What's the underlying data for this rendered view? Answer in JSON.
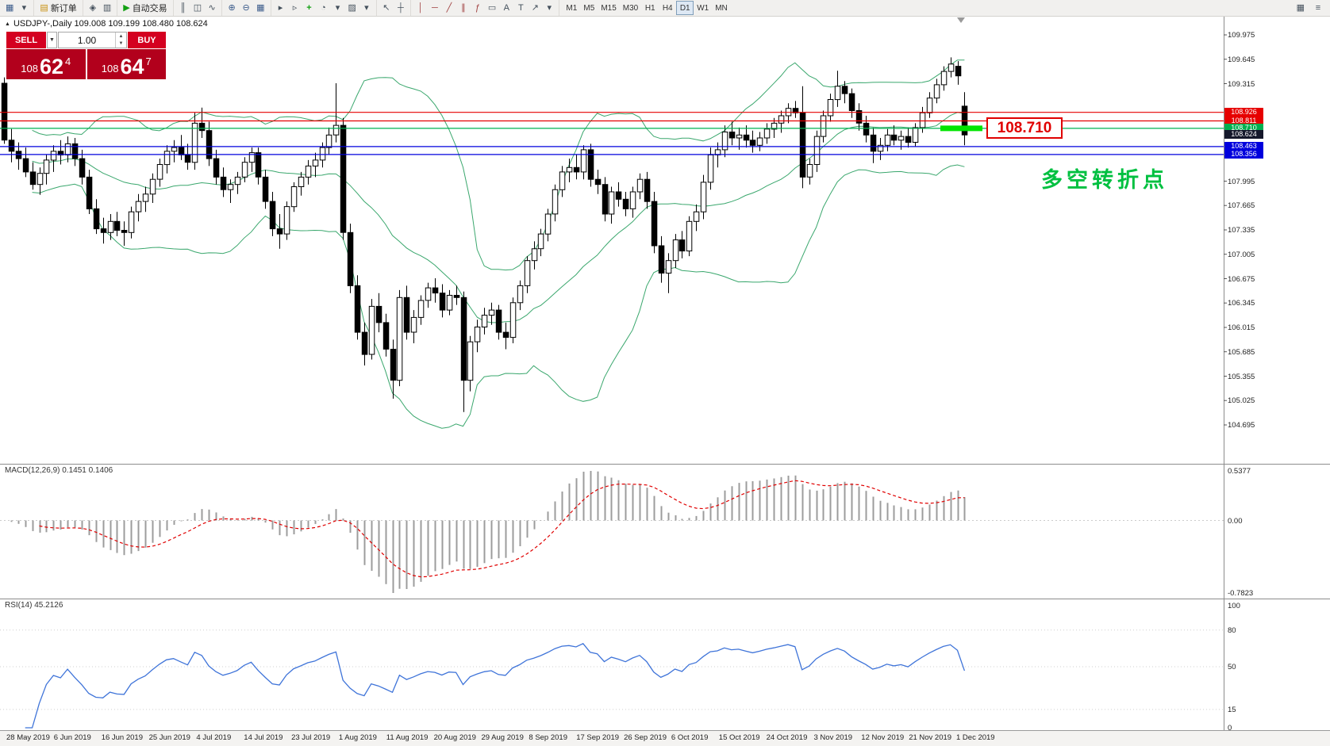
{
  "toolbar": {
    "groups": [
      [
        {
          "name": "new-chart-button",
          "icon": "new-chart-icon",
          "glyph": "▦"
        },
        {
          "name": "new-chart-dropdown",
          "icon": "chevron-down-icon",
          "glyph": "▾"
        }
      ],
      [
        {
          "name": "new-order-button",
          "icon": "new-order-icon",
          "glyph": "▤",
          "label": "新订单"
        }
      ],
      [
        {
          "name": "market-watch-button",
          "icon": "market-watch-icon",
          "glyph": "◈"
        },
        {
          "name": "data-window-button",
          "icon": "data-window-icon",
          "glyph": "▥"
        }
      ],
      [
        {
          "name": "autotrade-button",
          "icon": "autotrade-play-icon",
          "glyph": "▶",
          "label": "自动交易"
        }
      ],
      [
        {
          "name": "bar-chart-button",
          "icon": "bar-chart-icon",
          "glyph": "║"
        },
        {
          "name": "candlestick-button",
          "icon": "candlestick-icon",
          "glyph": "◫"
        },
        {
          "name": "line-chart-button",
          "icon": "line-chart-icon",
          "glyph": "∿"
        }
      ],
      [
        {
          "name": "zoom-in-button",
          "icon": "zoom-in-icon",
          "glyph": "⊕"
        },
        {
          "name": "zoom-out-button",
          "icon": "zoom-out-icon",
          "glyph": "⊖"
        },
        {
          "name": "tile-windows-button",
          "icon": "tile-windows-icon",
          "glyph": "▦"
        }
      ],
      [
        {
          "name": "auto-scroll-button",
          "icon": "auto-scroll-icon",
          "glyph": "▸"
        },
        {
          "name": "chart-shift-button",
          "icon": "chart-shift-icon",
          "glyph": "▹"
        },
        {
          "name": "indicators-button",
          "icon": "indicators-icon",
          "glyph": "+"
        },
        {
          "name": "periods-button",
          "icon": "periods-icon",
          "glyph": "◔"
        },
        {
          "name": "periods-dropdown",
          "icon": "chevron-down-icon",
          "glyph": "▾"
        },
        {
          "name": "templates-button",
          "icon": "templates-icon",
          "glyph": "▨"
        },
        {
          "name": "templates-dropdown",
          "icon": "chevron-down-icon",
          "glyph": "▾"
        }
      ],
      [
        {
          "name": "cursor-button",
          "icon": "cursor-icon",
          "glyph": "↖"
        },
        {
          "name": "crosshair-button",
          "icon": "crosshair-icon",
          "glyph": "┼"
        }
      ],
      [
        {
          "name": "vertical-line-button",
          "icon": "vertical-line-icon",
          "glyph": "│"
        },
        {
          "name": "horizontal-line-button",
          "icon": "horizontal-line-icon",
          "glyph": "─"
        },
        {
          "name": "trendline-button",
          "icon": "trendline-icon",
          "glyph": "╱"
        },
        {
          "name": "channel-button",
          "icon": "channel-icon",
          "glyph": "∥"
        },
        {
          "name": "fibonacci-button",
          "icon": "fibonacci-icon",
          "glyph": "ƒ"
        },
        {
          "name": "shapes-button",
          "icon": "shapes-icon",
          "glyph": "▭"
        },
        {
          "name": "text-button",
          "icon": "text-icon",
          "glyph": "A"
        },
        {
          "name": "text-label-button",
          "icon": "text-label-icon",
          "glyph": "T"
        },
        {
          "name": "arrows-button",
          "icon": "arrow-icon",
          "glyph": "↗"
        },
        {
          "name": "tools-dropdown",
          "icon": "chevron-down-icon",
          "glyph": "▾"
        }
      ]
    ],
    "timeframes": [
      "M1",
      "M5",
      "M15",
      "M30",
      "H1",
      "H4",
      "D1",
      "W1",
      "MN"
    ],
    "active_timeframe": "D1",
    "right_icons": [
      {
        "name": "grid-toggle-button",
        "icon": "grid-icon",
        "glyph": "▦"
      },
      {
        "name": "object-list-button",
        "icon": "list-icon",
        "glyph": "≡"
      }
    ]
  },
  "symbol_header": "USDJPY-,Daily 109.008 109.199 108.480 108.624",
  "trade_panel": {
    "sell": "SELL",
    "buy": "BUY",
    "volume": "1.00",
    "bid": {
      "int": "108",
      "pips": "62",
      "frac": "4"
    },
    "ask": {
      "int": "108",
      "pips": "64",
      "frac": "7"
    }
  },
  "annotations": {
    "price_callout": "108.710",
    "turning_point_text": "多空转折点"
  },
  "levels": [
    {
      "price": 108.926,
      "label": "108.926",
      "color": "#e60000"
    },
    {
      "price": 108.811,
      "label": "108.811",
      "color": "#e60000"
    },
    {
      "price": 108.71,
      "label": "108.710",
      "color": "#00b050"
    },
    {
      "price": 108.624,
      "label": "108.624",
      "color": "#15182b",
      "line": false,
      "current": true
    },
    {
      "price": 108.463,
      "label": "108.463",
      "color": "#0000dd"
    },
    {
      "price": 108.356,
      "label": "108.356",
      "color": "#0000dd"
    }
  ],
  "highlight_segment": {
    "price": 108.71,
    "color": "#00e400"
  },
  "price_axis_labels": [
    "109.975",
    "109.645",
    "109.315",
    "107.995",
    "107.665",
    "107.335",
    "107.005",
    "106.675",
    "106.345",
    "106.015",
    "105.685",
    "105.355",
    "105.025",
    "104.695"
  ],
  "macd": {
    "label": "MACD(12,26,9) 0.1451 0.1406",
    "axis_max": "0.5377",
    "axis_zero": "0.00",
    "axis_min": "-0.7823"
  },
  "rsi": {
    "label": "RSI(14) 45.2126",
    "axis_labels": [
      "100",
      "80",
      "50",
      "15",
      "0"
    ]
  },
  "time_axis": [
    "28 May 2019",
    "6 Jun 2019",
    "16 Jun 2019",
    "25 Jun 2019",
    "4 Jul 2019",
    "14 Jul 2019",
    "23 Jul 2019",
    "1 Aug 2019",
    "11 Aug 2019",
    "20 Aug 2019",
    "29 Aug 2019",
    "8 Sep 2019",
    "17 Sep 2019",
    "26 Sep 2019",
    "6 Oct 2019",
    "15 Oct 2019",
    "24 Oct 2019",
    "3 Nov 2019",
    "12 Nov 2019",
    "21 Nov 2019",
    "1 Dec 2019"
  ],
  "chart_data": {
    "type": "candlestick",
    "symbol": "USDJPY",
    "timeframe": "Daily",
    "indicators": {
      "bollinger": "20,2",
      "macd": "12,26,9",
      "rsi": "14"
    },
    "ohlc": [
      [
        109.32,
        109.4,
        108.5,
        108.55
      ],
      [
        108.55,
        108.7,
        108.25,
        108.4
      ],
      [
        108.4,
        108.52,
        108.15,
        108.3
      ],
      [
        108.3,
        108.45,
        108.05,
        108.12
      ],
      [
        108.12,
        108.25,
        107.88,
        107.95
      ],
      [
        107.95,
        108.18,
        107.81,
        108.1
      ],
      [
        108.1,
        108.35,
        107.95,
        108.28
      ],
      [
        108.28,
        108.48,
        108.12,
        108.4
      ],
      [
        108.4,
        108.55,
        108.22,
        108.35
      ],
      [
        108.35,
        108.6,
        108.25,
        108.5
      ],
      [
        108.5,
        108.58,
        108.2,
        108.3
      ],
      [
        108.3,
        108.42,
        107.95,
        108.05
      ],
      [
        108.05,
        108.15,
        107.55,
        107.62
      ],
      [
        107.62,
        107.75,
        107.28,
        107.35
      ],
      [
        107.35,
        107.5,
        107.15,
        107.3
      ],
      [
        107.3,
        107.55,
        107.2,
        107.45
      ],
      [
        107.45,
        107.58,
        107.25,
        107.33
      ],
      [
        107.33,
        107.45,
        107.12,
        107.3
      ],
      [
        107.3,
        107.65,
        107.22,
        107.58
      ],
      [
        107.58,
        107.82,
        107.45,
        107.72
      ],
      [
        107.72,
        107.92,
        107.58,
        107.82
      ],
      [
        107.82,
        108.1,
        107.7,
        108.02
      ],
      [
        108.02,
        108.3,
        107.92,
        108.22
      ],
      [
        108.22,
        108.48,
        108.1,
        108.4
      ],
      [
        108.4,
        108.55,
        108.25,
        108.45
      ],
      [
        108.45,
        108.62,
        108.28,
        108.35
      ],
      [
        108.35,
        108.5,
        108.15,
        108.25
      ],
      [
        108.25,
        108.92,
        108.15,
        108.78
      ],
      [
        108.78,
        108.99,
        108.58,
        108.68
      ],
      [
        108.68,
        108.8,
        108.2,
        108.3
      ],
      [
        108.3,
        108.42,
        107.95,
        108.05
      ],
      [
        108.05,
        108.18,
        107.78,
        107.88
      ],
      [
        107.88,
        108.02,
        107.7,
        107.95
      ],
      [
        107.95,
        108.12,
        107.82,
        108.05
      ],
      [
        108.05,
        108.32,
        107.98,
        108.25
      ],
      [
        108.25,
        108.45,
        108.12,
        108.38
      ],
      [
        108.38,
        108.45,
        107.95,
        108.05
      ],
      [
        108.05,
        108.15,
        107.62,
        107.72
      ],
      [
        107.72,
        107.85,
        107.25,
        107.35
      ],
      [
        107.35,
        107.55,
        107.08,
        107.28
      ],
      [
        107.28,
        107.72,
        107.2,
        107.65
      ],
      [
        107.65,
        107.98,
        107.58,
        107.92
      ],
      [
        107.92,
        108.12,
        107.8,
        108.05
      ],
      [
        108.05,
        108.28,
        107.95,
        108.2
      ],
      [
        108.2,
        108.38,
        108.05,
        108.28
      ],
      [
        108.28,
        108.52,
        108.18,
        108.45
      ],
      [
        108.45,
        108.72,
        108.35,
        108.62
      ],
      [
        108.62,
        109.32,
        108.52,
        108.75
      ],
      [
        108.75,
        108.85,
        107.2,
        107.3
      ],
      [
        107.3,
        107.42,
        106.48,
        106.58
      ],
      [
        106.58,
        106.72,
        105.85,
        105.95
      ],
      [
        105.95,
        106.08,
        105.5,
        105.65
      ],
      [
        105.65,
        106.4,
        105.58,
        106.3
      ],
      [
        106.3,
        106.48,
        105.95,
        106.08
      ],
      [
        106.08,
        106.2,
        105.62,
        105.72
      ],
      [
        105.72,
        105.85,
        105.05,
        105.3
      ],
      [
        105.3,
        106.52,
        105.22,
        106.42
      ],
      [
        106.42,
        106.58,
        105.85,
        105.95
      ],
      [
        105.95,
        106.25,
        105.8,
        106.15
      ],
      [
        106.15,
        106.45,
        106.05,
        106.38
      ],
      [
        106.38,
        106.62,
        106.28,
        106.55
      ],
      [
        106.55,
        106.68,
        106.35,
        106.48
      ],
      [
        106.48,
        106.6,
        106.15,
        106.25
      ],
      [
        106.25,
        106.52,
        106.18,
        106.45
      ],
      [
        106.45,
        106.58,
        106.32,
        106.42
      ],
      [
        106.42,
        106.5,
        104.87,
        105.3
      ],
      [
        105.3,
        105.9,
        105.15,
        105.82
      ],
      [
        105.82,
        106.12,
        105.68,
        106.02
      ],
      [
        106.02,
        106.28,
        105.92,
        106.18
      ],
      [
        106.18,
        106.35,
        106.05,
        106.25
      ],
      [
        106.25,
        106.32,
        105.85,
        105.95
      ],
      [
        105.95,
        106.08,
        105.72,
        105.88
      ],
      [
        105.88,
        106.42,
        105.8,
        106.35
      ],
      [
        106.35,
        106.65,
        106.25,
        106.58
      ],
      [
        106.58,
        106.98,
        106.48,
        106.92
      ],
      [
        106.92,
        107.18,
        106.8,
        107.08
      ],
      [
        107.08,
        107.35,
        106.98,
        107.28
      ],
      [
        107.28,
        107.62,
        107.18,
        107.55
      ],
      [
        107.55,
        107.95,
        107.45,
        107.88
      ],
      [
        107.88,
        108.2,
        107.78,
        108.12
      ],
      [
        108.12,
        108.3,
        107.98,
        108.18
      ],
      [
        108.18,
        108.35,
        108.02,
        108.12
      ],
      [
        108.12,
        108.48,
        108.02,
        108.42
      ],
      [
        108.42,
        108.5,
        107.92,
        108.02
      ],
      [
        108.02,
        108.15,
        107.82,
        107.95
      ],
      [
        107.95,
        108.05,
        107.45,
        107.55
      ],
      [
        107.55,
        107.92,
        107.42,
        107.85
      ],
      [
        107.85,
        107.98,
        107.65,
        107.75
      ],
      [
        107.75,
        107.85,
        107.52,
        107.62
      ],
      [
        107.62,
        107.92,
        107.5,
        107.85
      ],
      [
        107.85,
        108.1,
        107.75,
        108.02
      ],
      [
        108.02,
        108.12,
        107.62,
        107.72
      ],
      [
        107.72,
        107.85,
        107.02,
        107.12
      ],
      [
        107.12,
        107.25,
        106.62,
        106.75
      ],
      [
        106.75,
        107.02,
        106.48,
        106.92
      ],
      [
        106.92,
        107.28,
        106.82,
        107.2
      ],
      [
        107.2,
        107.32,
        106.95,
        107.05
      ],
      [
        107.05,
        107.52,
        106.98,
        107.45
      ],
      [
        107.45,
        107.68,
        107.32,
        107.58
      ],
      [
        107.58,
        108.08,
        107.48,
        107.98
      ],
      [
        107.98,
        108.45,
        107.88,
        108.35
      ],
      [
        108.35,
        108.52,
        108.18,
        108.42
      ],
      [
        108.42,
        108.75,
        108.32,
        108.66
      ],
      [
        108.66,
        108.8,
        108.48,
        108.58
      ],
      [
        108.58,
        108.72,
        108.42,
        108.62
      ],
      [
        108.62,
        108.75,
        108.45,
        108.55
      ],
      [
        108.55,
        108.68,
        108.38,
        108.48
      ],
      [
        108.48,
        108.66,
        108.4,
        108.58
      ],
      [
        108.58,
        108.78,
        108.5,
        108.7
      ],
      [
        108.7,
        108.85,
        108.58,
        108.78
      ],
      [
        108.78,
        108.95,
        108.65,
        108.88
      ],
      [
        108.88,
        109.05,
        108.78,
        108.98
      ],
      [
        108.98,
        109.08,
        108.85,
        108.92
      ],
      [
        108.92,
        109.28,
        107.9,
        108.05
      ],
      [
        108.05,
        108.3,
        107.95,
        108.22
      ],
      [
        108.22,
        108.68,
        108.12,
        108.6
      ],
      [
        108.6,
        108.95,
        108.52,
        108.88
      ],
      [
        108.88,
        109.18,
        108.8,
        109.1
      ],
      [
        109.1,
        109.49,
        109.0,
        109.28
      ],
      [
        109.28,
        109.35,
        109.05,
        109.18
      ],
      [
        109.18,
        109.25,
        108.85,
        108.95
      ],
      [
        108.95,
        109.05,
        108.68,
        108.78
      ],
      [
        108.78,
        108.88,
        108.52,
        108.62
      ],
      [
        108.62,
        108.72,
        108.24,
        108.4
      ],
      [
        108.4,
        108.58,
        108.28,
        108.48
      ],
      [
        108.48,
        108.7,
        108.4,
        108.62
      ],
      [
        108.62,
        108.75,
        108.48,
        108.55
      ],
      [
        108.55,
        108.68,
        108.42,
        108.6
      ],
      [
        108.6,
        108.72,
        108.45,
        108.52
      ],
      [
        108.52,
        108.78,
        108.46,
        108.72
      ],
      [
        108.72,
        109.0,
        108.65,
        108.92
      ],
      [
        108.92,
        109.2,
        108.85,
        109.12
      ],
      [
        109.12,
        109.38,
        109.05,
        109.3
      ],
      [
        109.3,
        109.55,
        109.22,
        109.48
      ],
      [
        109.48,
        109.67,
        109.4,
        109.58
      ],
      [
        109.55,
        109.62,
        109.3,
        109.42
      ],
      [
        109.01,
        109.2,
        108.48,
        108.62
      ]
    ]
  }
}
